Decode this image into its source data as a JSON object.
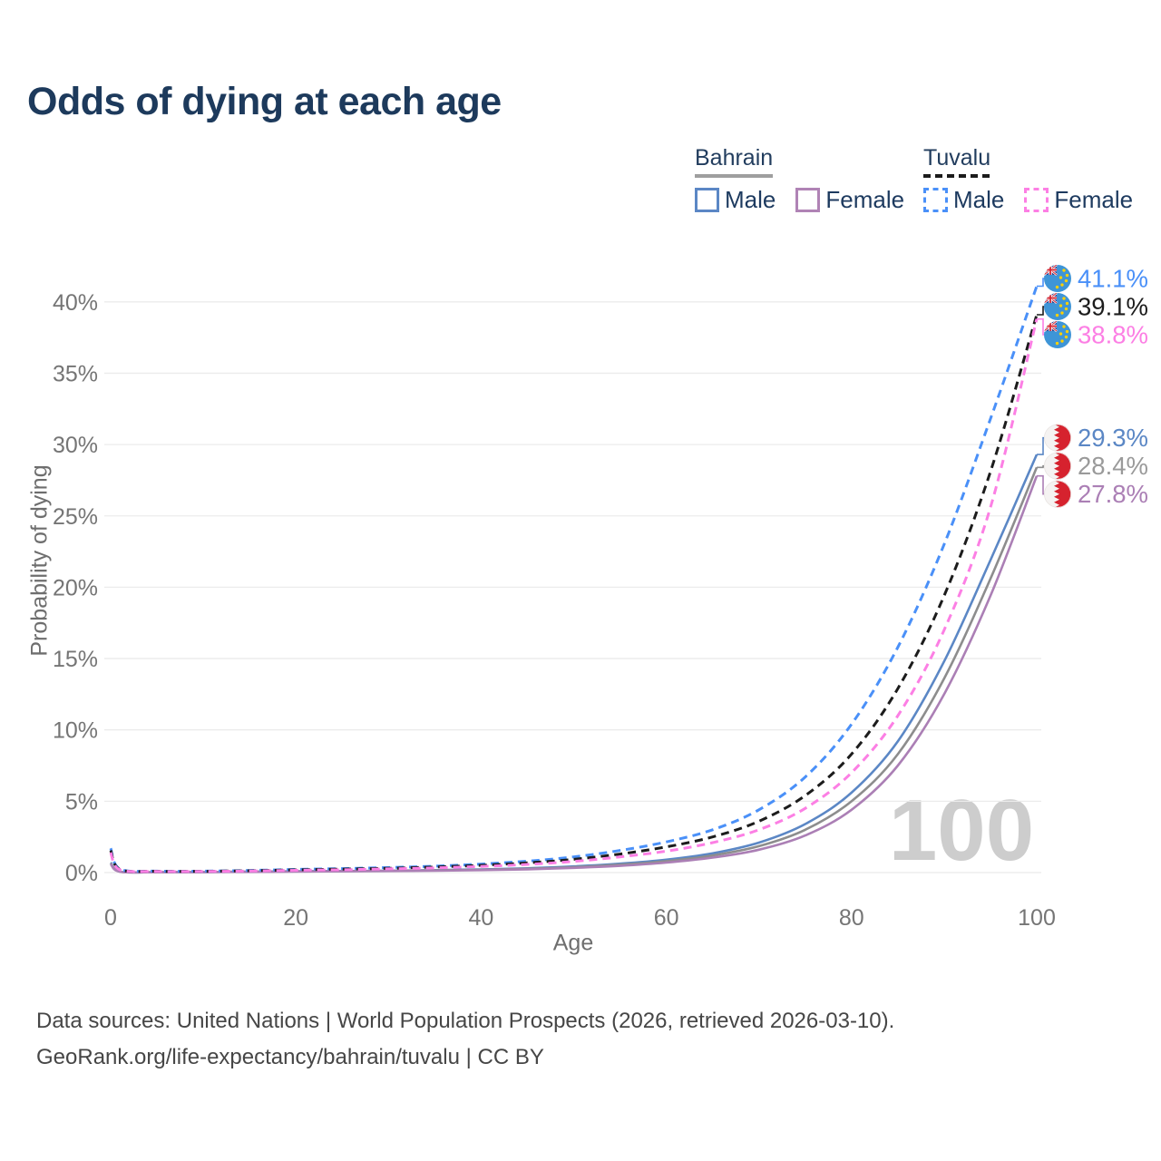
{
  "title": "Odds of dying at each age",
  "watermark": "100",
  "legend": {
    "groups": [
      {
        "name": "Bahrain",
        "line_style": "solid",
        "underline_color": "#9e9e9e",
        "items": [
          {
            "label": "Male",
            "color": "#5b87c5"
          },
          {
            "label": "Female",
            "color": "#b083b5"
          }
        ]
      },
      {
        "name": "Tuvalu",
        "line_style": "dashed",
        "underline_color": "#1b1b1b",
        "items": [
          {
            "label": "Male",
            "color": "#4a90f8"
          },
          {
            "label": "Female",
            "color": "#fc7fe4"
          }
        ]
      }
    ]
  },
  "chart_data": {
    "type": "line",
    "title": "Odds of dying at each age",
    "xlabel": "Age",
    "ylabel": "Probability of dying",
    "xlim": [
      0,
      100
    ],
    "ylim": [
      0,
      42
    ],
    "x_ticks": [
      0,
      20,
      40,
      60,
      80,
      100
    ],
    "y_ticks": [
      0,
      5,
      10,
      15,
      20,
      25,
      30,
      35,
      40
    ],
    "y_tick_suffix": "%",
    "grid": true,
    "legend_position": "top-right",
    "ages": [
      0,
      1,
      5,
      10,
      15,
      20,
      25,
      30,
      35,
      40,
      45,
      50,
      55,
      60,
      65,
      70,
      75,
      80,
      85,
      90,
      95,
      100
    ],
    "series": [
      {
        "name": "Bahrain Male",
        "country": "Bahrain",
        "sex": "Male",
        "style": "solid",
        "color": "#5b87c5",
        "label_color": "#5b87c5",
        "flag": "bahrain",
        "end_label": "29.3%",
        "values": [
          0.7,
          0.07,
          0.03,
          0.04,
          0.06,
          0.09,
          0.11,
          0.13,
          0.17,
          0.22,
          0.3,
          0.43,
          0.62,
          0.9,
          1.35,
          2.1,
          3.4,
          5.6,
          9.2,
          14.8,
          21.9,
          29.3
        ]
      },
      {
        "name": "Bahrain Combined",
        "country": "Bahrain",
        "sex": "Both",
        "style": "solid",
        "color": "#8d8d8d",
        "label_color": "#9a9a9a",
        "flag": "bahrain",
        "end_label": "28.4%",
        "values": [
          0.65,
          0.065,
          0.028,
          0.035,
          0.055,
          0.08,
          0.1,
          0.12,
          0.15,
          0.2,
          0.27,
          0.38,
          0.55,
          0.8,
          1.2,
          1.85,
          3.0,
          5.0,
          8.3,
          13.6,
          20.6,
          28.4
        ]
      },
      {
        "name": "Bahrain Female",
        "country": "Bahrain",
        "sex": "Female",
        "style": "solid",
        "color": "#ab7fb5",
        "label_color": "#ab7fb5",
        "flag": "bahrain",
        "end_label": "27.8%",
        "values": [
          0.6,
          0.06,
          0.025,
          0.03,
          0.045,
          0.07,
          0.09,
          0.11,
          0.13,
          0.17,
          0.23,
          0.33,
          0.47,
          0.7,
          1.05,
          1.6,
          2.6,
          4.4,
          7.5,
          12.5,
          19.4,
          27.8
        ]
      },
      {
        "name": "Tuvalu Male",
        "country": "Tuvalu",
        "sex": "Male",
        "style": "dashed",
        "color": "#4a90f8",
        "label_color": "#4a90f8",
        "flag": "tuvalu",
        "end_label": "41.1%",
        "values": [
          1.7,
          0.25,
          0.1,
          0.1,
          0.15,
          0.22,
          0.28,
          0.35,
          0.45,
          0.6,
          0.8,
          1.1,
          1.55,
          2.15,
          3.0,
          4.4,
          6.7,
          10.4,
          15.8,
          23.0,
          31.8,
          41.1
        ]
      },
      {
        "name": "Tuvalu Combined",
        "country": "Tuvalu",
        "sex": "Both",
        "style": "dashed",
        "color": "#1c1c1c",
        "label_color": "#1c1c1c",
        "flag": "tuvalu",
        "end_label": "39.1%",
        "values": [
          1.55,
          0.22,
          0.09,
          0.09,
          0.13,
          0.19,
          0.24,
          0.3,
          0.39,
          0.51,
          0.68,
          0.93,
          1.3,
          1.8,
          2.5,
          3.6,
          5.4,
          8.3,
          12.9,
          19.4,
          28.1,
          39.1
        ]
      },
      {
        "name": "Tuvalu Female",
        "country": "Tuvalu",
        "sex": "Female",
        "style": "dashed",
        "color": "#fc7fe4",
        "label_color": "#fc7fe4",
        "flag": "tuvalu",
        "end_label": "38.8%",
        "values": [
          1.4,
          0.2,
          0.08,
          0.08,
          0.11,
          0.16,
          0.2,
          0.26,
          0.33,
          0.43,
          0.57,
          0.78,
          1.1,
          1.5,
          2.1,
          3.0,
          4.5,
          7.0,
          11.0,
          17.0,
          25.6,
          38.8
        ]
      }
    ]
  },
  "footer": {
    "line1": "Data sources: United Nations | World Population Prospects (2026, retrieved 2026-03-10).",
    "line2": "GeoRank.org/life-expectancy/bahrain/tuvalu | CC BY"
  }
}
